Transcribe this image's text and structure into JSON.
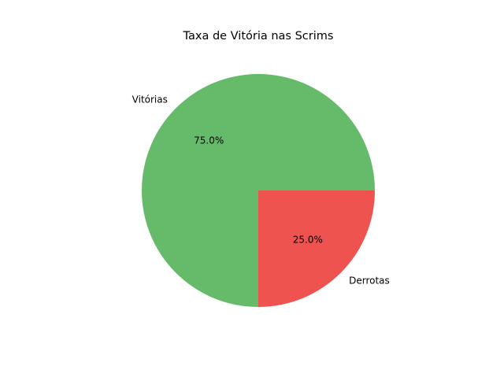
{
  "chart_data": {
    "type": "pie",
    "title": "Taxa de Vitória nas Scrims",
    "categories": [
      "Vitórias",
      "Derrotas"
    ],
    "values": [
      75.0,
      25.0
    ],
    "percent_labels": [
      "75.0%",
      "25.0%"
    ],
    "colors": [
      "#66bb6a",
      "#ef5350"
    ],
    "start_angle_deg": 0,
    "direction": "counterclockwise",
    "legend": "none"
  }
}
